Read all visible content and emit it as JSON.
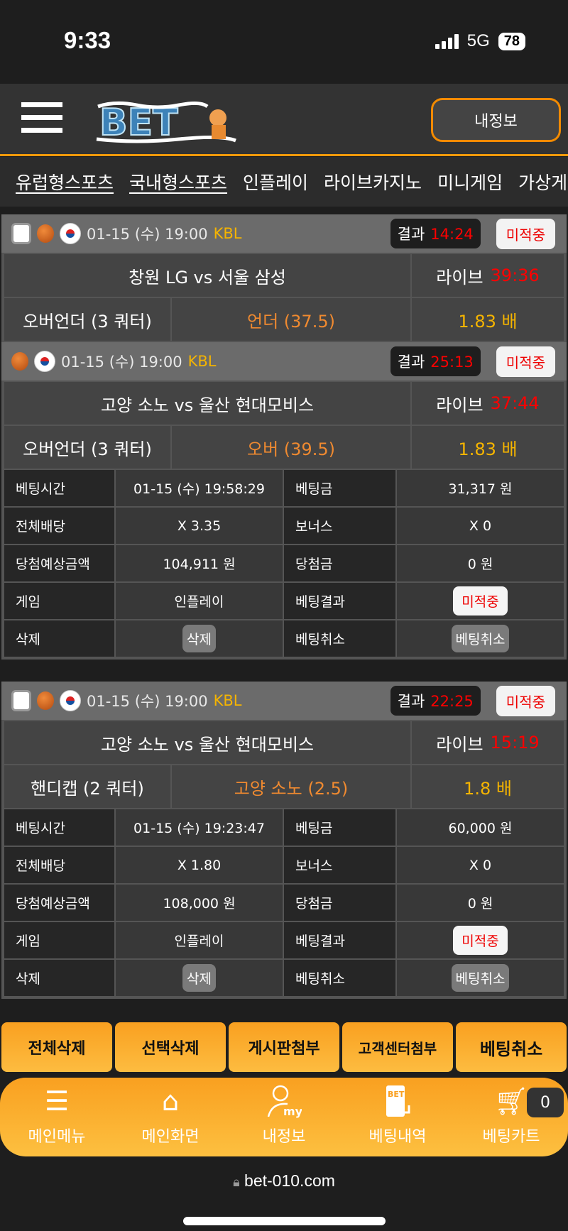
{
  "status_bar": {
    "time": "9:33",
    "network": "5G",
    "battery": "78"
  },
  "header": {
    "my_info_button": "내정보",
    "logo_text": "BET"
  },
  "nav": {
    "items": [
      "유럽형스포츠",
      "국내형스포츠",
      "인플레이",
      "라이브카지노",
      "미니게임",
      "가상게"
    ]
  },
  "colors": {
    "accent": "#f29a0a",
    "odds": "#f5b400",
    "pick": "#f08a30",
    "live_time": "#ff0000"
  },
  "tickets": [
    {
      "games": [
        {
          "datetime": "01-15 (수) 19:00",
          "league": "KBL",
          "result_label": "결과",
          "result_time": "14:24",
          "status": "미적중",
          "teams": "창원 LG  vs  서울 삼성",
          "live_label": "라이브",
          "live_time": "39:36",
          "market": "오버언더 (3 쿼터)",
          "pick": "언더 (37.5)",
          "odds": "1.83 배"
        },
        {
          "datetime": "01-15 (수) 19:00",
          "league": "KBL",
          "result_label": "결과",
          "result_time": "25:13",
          "status": "미적중",
          "teams": "고양 소노  vs  울산 현대모비스",
          "live_label": "라이브",
          "live_time": "37:44",
          "market": "오버언더 (3 쿼터)",
          "pick": "오버 (39.5)",
          "odds": "1.83 배"
        }
      ],
      "details": {
        "bet_time_label": "베팅시간",
        "bet_time": "01-15 (수) 19:58:29",
        "stake_label": "베팅금",
        "stake": "31,317 원",
        "total_odds_label": "전체배당",
        "total_odds": "X 3.35",
        "bonus_label": "보너스",
        "bonus": "X 0",
        "expected_label": "당첨예상금액",
        "expected": "104,911 원",
        "win_label": "당첨금",
        "win": "0 원",
        "game_label": "게임",
        "game": "인플레이",
        "result_label": "베팅결과",
        "result": "미적중",
        "delete_label": "삭제",
        "delete_button": "삭제",
        "cancel_label": "베팅취소",
        "cancel_button": "베팅취소"
      }
    },
    {
      "games": [
        {
          "datetime": "01-15 (수) 19:00",
          "league": "KBL",
          "result_label": "결과",
          "result_time": "22:25",
          "status": "미적중",
          "teams": "고양 소노  vs  울산 현대모비스",
          "live_label": "라이브",
          "live_time": "15:19",
          "market": "핸디캡 (2 쿼터)",
          "pick": "고양 소노 (2.5)",
          "odds": "1.8 배"
        }
      ],
      "details": {
        "bet_time_label": "베팅시간",
        "bet_time": "01-15 (수) 19:23:47",
        "stake_label": "베팅금",
        "stake": "60,000 원",
        "total_odds_label": "전체배당",
        "total_odds": "X 1.80",
        "bonus_label": "보너스",
        "bonus": "X 0",
        "expected_label": "당첨예상금액",
        "expected": "108,000 원",
        "win_label": "당첨금",
        "win": "0 원",
        "game_label": "게임",
        "game": "인플레이",
        "result_label": "베팅결과",
        "result": "미적중",
        "delete_label": "삭제",
        "delete_button": "삭제",
        "cancel_label": "베팅취소",
        "cancel_button": "베팅취소"
      }
    }
  ],
  "actions": [
    "전체삭제",
    "선택삭제",
    "게시판첨부",
    "고객센터첨부",
    "베팅취소"
  ],
  "bottom_nav": [
    {
      "label": "메인메뉴",
      "icon": "menu-icon"
    },
    {
      "label": "메인화면",
      "icon": "home-icon"
    },
    {
      "label": "내정보",
      "icon": "user-icon",
      "icon_text": "my"
    },
    {
      "label": "베팅내역",
      "icon": "bet-history-icon",
      "icon_text": "BET"
    },
    {
      "label": "베팅카트",
      "icon": "cart-icon",
      "badge": "0"
    }
  ],
  "browser": {
    "url": "bet-010.com"
  }
}
